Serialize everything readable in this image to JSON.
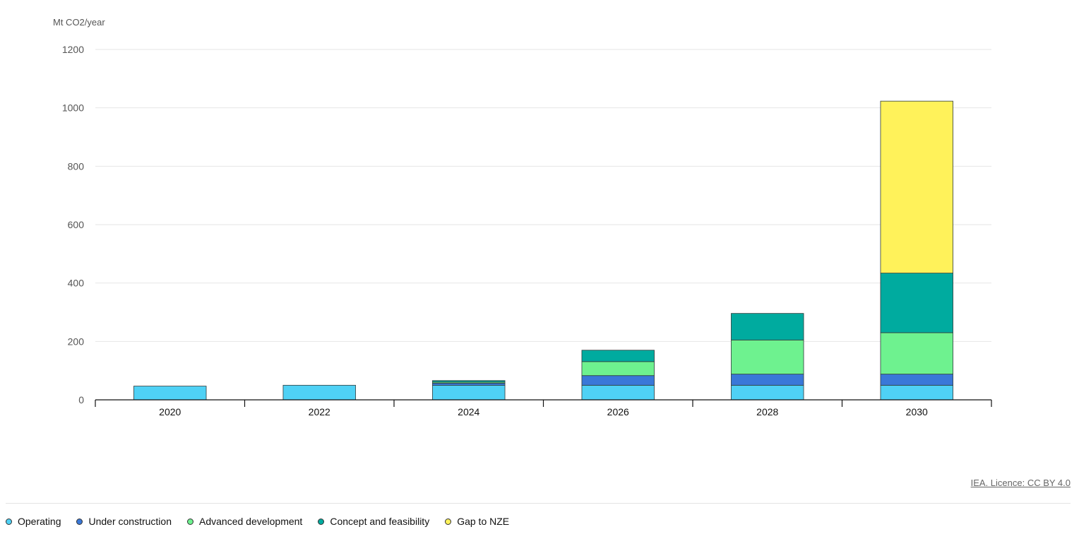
{
  "chart_data": {
    "type": "bar",
    "stacked": true,
    "title": "",
    "xlabel": "",
    "ylabel": "Mt CO2/year",
    "ylim": [
      0,
      1200
    ],
    "yticks": [
      0,
      200,
      400,
      600,
      800,
      1000,
      1200
    ],
    "grid": true,
    "legend_position": "bottom-left",
    "categories": [
      "2020",
      "2022",
      "2024",
      "2026",
      "2028",
      "2030"
    ],
    "series": [
      {
        "name": "Operating",
        "color": "#4fd1f5",
        "values": [
          47,
          50,
          50,
          50,
          50,
          50
        ]
      },
      {
        "name": "Under construction",
        "color": "#3a78d8",
        "values": [
          0,
          0,
          7,
          33,
          38,
          38
        ]
      },
      {
        "name": "Advanced development",
        "color": "#6ef28f",
        "values": [
          0,
          0,
          4,
          48,
          117,
          142
        ]
      },
      {
        "name": "Concept and feasibility",
        "color": "#00ab9f",
        "values": [
          0,
          0,
          5,
          39,
          91,
          204
        ]
      },
      {
        "name": "Gap to NZE",
        "color": "#fff25a",
        "values": [
          0,
          0,
          0,
          0,
          0,
          589
        ]
      }
    ]
  },
  "footer": {
    "credit": "IEA. Licence: CC BY 4.0"
  }
}
